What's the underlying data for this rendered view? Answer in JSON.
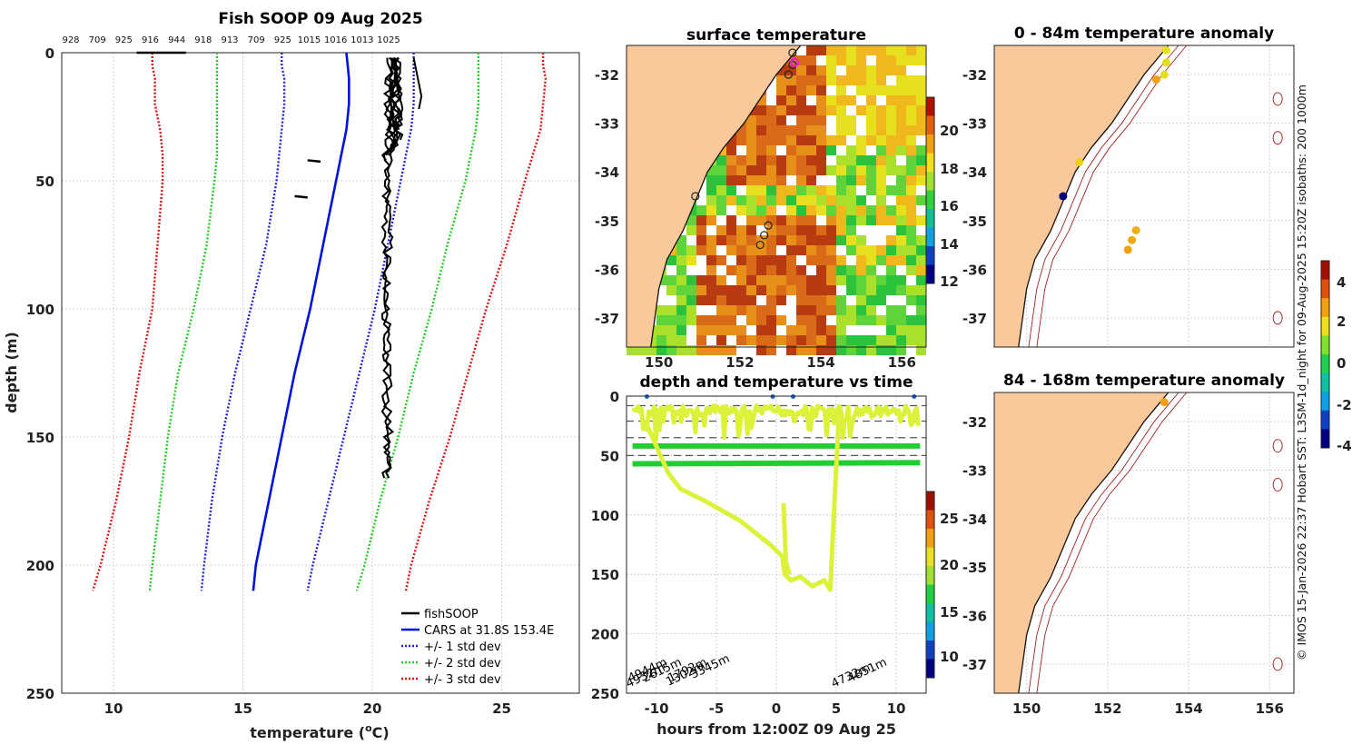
{
  "colors": {
    "land": "#f9c89b",
    "cars": "#0010e0",
    "std1": "#2020e0",
    "std2": "#22cc22",
    "std3": "#e01010",
    "fish": "#000000",
    "track": "#dcf23a",
    "trackdeep": "#22cc33",
    "coast": "#111111",
    "isobath": "#a02020"
  },
  "left_panel": {
    "xlabel": "temperature",
    "xlabel_unit": "(°C)",
    "ylabel": "depth (m)"
  },
  "map_panels": {
    "sst_title": "surface temperature",
    "anom1_title": "0 - 84m temperature anomaly",
    "anom2_title": "84 - 168m temperature anomaly",
    "lon_ticks": [
      "150",
      "152",
      "154",
      "156"
    ],
    "lat_ticks": [
      "-32",
      "-33",
      "-34",
      "-35",
      "-36",
      "-37"
    ],
    "sst_colorbar_ticks": [
      "12",
      "14",
      "16",
      "18",
      "20"
    ],
    "anom_colorbar_ticks": [
      "-4",
      "-2",
      "0",
      "2",
      "4"
    ]
  },
  "time_panel": {
    "title": "depth and temperature vs time",
    "xlabel": "hours from 12:00Z 09 Aug 25",
    "colorbar_ticks": [
      "10",
      "15",
      "20",
      "25"
    ],
    "bottom_labels": [
      "4932m",
      "4944m",
      "2615m",
      "1302m",
      "1792m",
      "3345m",
      "4732m",
      "4851m"
    ]
  },
  "credit": "© IMOS 15-Jan-2026 22:37 Hobart SST: L3SM-1d_night for 09-Aug-2025 15:20Z isobaths: 200  1000m",
  "chart_data": [
    {
      "type": "line",
      "title": "Fish SOOP 09 Aug 2025",
      "top_labels": [
        "928",
        "709",
        "925",
        "916",
        "944",
        "918",
        "913",
        "709",
        "925",
        "1015",
        "1016",
        "1013",
        "1025"
      ],
      "xlim": [
        8,
        28
      ],
      "ylim": [
        250,
        0
      ],
      "x_ticks": [
        "10",
        "15",
        "20",
        "25"
      ],
      "y_ticks": [
        "0",
        "50",
        "100",
        "150",
        "200",
        "250"
      ],
      "xlabel": "temperature (oC)",
      "ylabel": "depth (m)",
      "depth": [
        0,
        5,
        10,
        20,
        30,
        40,
        50,
        75,
        100,
        125,
        150,
        175,
        200,
        210
      ],
      "series": [
        {
          "name": "CARS at 31.8S 153.4E",
          "values": [
            19.0,
            19.05,
            19.1,
            19.1,
            19.0,
            18.8,
            18.6,
            18.1,
            17.6,
            17.0,
            16.5,
            16.0,
            15.5,
            15.4
          ]
        },
        {
          "name": "+/- 1 std dev",
          "values": [
            21.6,
            21.6,
            21.6,
            21.6,
            21.5,
            21.3,
            21.1,
            20.6,
            20.1,
            19.5,
            18.9,
            18.3,
            17.7,
            17.5
          ]
        },
        {
          "name": "+/- 1 std dev",
          "values": [
            16.5,
            16.5,
            16.6,
            16.6,
            16.5,
            16.4,
            16.3,
            15.9,
            15.3,
            14.7,
            14.2,
            13.8,
            13.5,
            13.4
          ]
        },
        {
          "name": "+/- 2 std dev",
          "values": [
            24.1,
            24.1,
            24.1,
            24.1,
            24.0,
            23.8,
            23.6,
            22.9,
            22.3,
            21.6,
            21.0,
            20.3,
            19.7,
            19.4
          ]
        },
        {
          "name": "+/- 2 std dev",
          "values": [
            14.0,
            14.0,
            14.0,
            14.0,
            14.0,
            14.0,
            13.9,
            13.6,
            13.1,
            12.5,
            12.1,
            11.8,
            11.5,
            11.4
          ]
        },
        {
          "name": "+/- 3 std dev",
          "values": [
            26.6,
            26.6,
            26.7,
            26.6,
            26.5,
            26.2,
            25.9,
            25.2,
            24.4,
            23.7,
            23.0,
            22.2,
            21.5,
            21.3
          ]
        },
        {
          "name": "+/- 3 std dev",
          "values": [
            11.5,
            11.5,
            11.6,
            11.6,
            11.8,
            11.9,
            11.9,
            11.7,
            11.5,
            11.0,
            10.6,
            10.1,
            9.5,
            9.2
          ]
        },
        {
          "name": "fishSOOP",
          "values": [
            20.6,
            20.7,
            20.6,
            20.8,
            20.6,
            20.5,
            20.5,
            20.5,
            20.4,
            20.4,
            20.4,
            20.4,
            null,
            null
          ]
        }
      ],
      "legend": [
        "fishSOOP",
        "CARS at 31.8S 153.4E",
        "+/- 1 std dev",
        "+/- 2 std dev",
        "+/- 3 std dev"
      ]
    }
  ]
}
